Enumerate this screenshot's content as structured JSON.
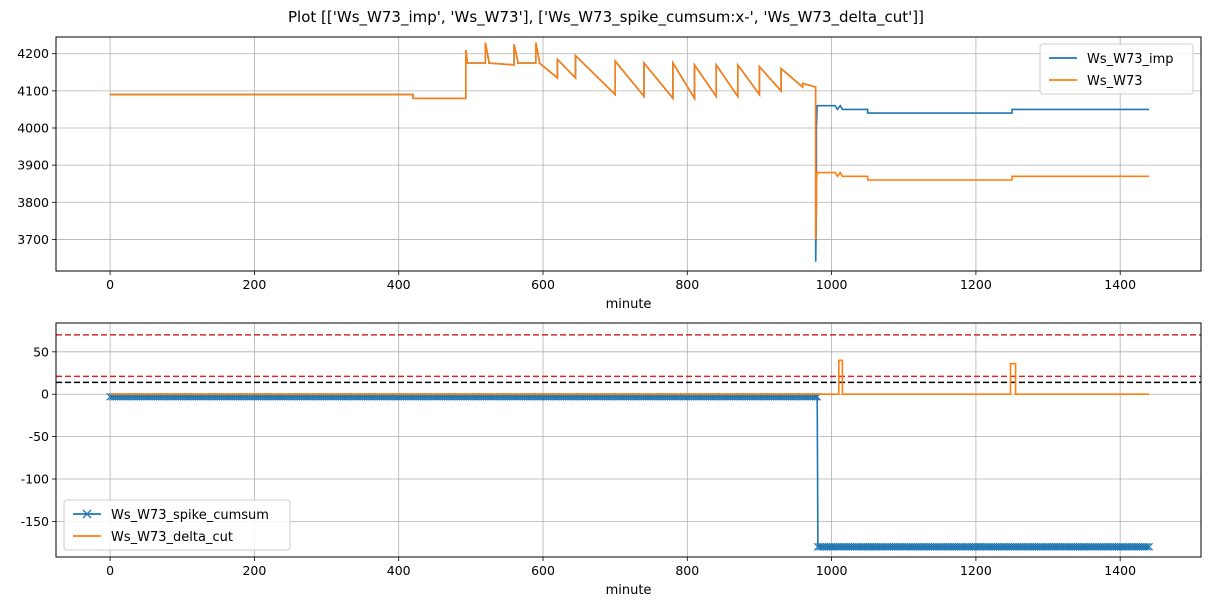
{
  "figure": {
    "title": "Plot [['Ws_W73_imp', 'Ws_W73'], ['Ws_W73_spike_cumsum:x-', 'Ws_W73_delta_cut']]"
  },
  "colors": {
    "blue": "#1f77b4",
    "orange": "#ff7f0e",
    "red": "#d62728",
    "black": "#000000",
    "grid": "#b0b0b0"
  },
  "chart_data": [
    {
      "type": "line",
      "xlabel": "minute",
      "ylabel": "",
      "xlim": [
        -75,
        1512
      ],
      "ylim": [
        3615,
        4245
      ],
      "xticks": [
        0,
        200,
        400,
        600,
        800,
        1000,
        1200,
        1400
      ],
      "yticks": [
        3700,
        3800,
        3900,
        4000,
        4100,
        4200
      ],
      "grid": true,
      "legend_position": "upper right",
      "series": [
        {
          "name": "Ws_W73_imp",
          "color": "#1f77b4",
          "x": [
            0,
            420,
            420,
            493,
            493,
            495,
            495,
            520,
            520,
            525,
            525,
            560,
            560,
            565,
            565,
            590,
            590,
            595,
            595,
            620,
            620,
            645,
            645,
            700,
            700,
            740,
            740,
            780,
            780,
            810,
            810,
            840,
            840,
            870,
            870,
            900,
            900,
            930,
            930,
            960,
            960,
            978,
            978,
            979,
            979,
            980,
            980,
            981,
            981,
            1005,
            1008,
            1012,
            1015,
            1050,
            1050,
            1250,
            1250,
            1440
          ],
          "y": [
            4090,
            4090,
            4080,
            4080,
            4210,
            4180,
            4175,
            4175,
            4230,
            4180,
            4175,
            4170,
            4225,
            4180,
            4175,
            4175,
            4230,
            4180,
            4175,
            4135,
            4185,
            4135,
            4195,
            4090,
            4180,
            4085,
            4175,
            4080,
            4175,
            4080,
            4170,
            4085,
            4170,
            4085,
            4170,
            4090,
            4165,
            4100,
            4160,
            4110,
            4120,
            4110,
            3640,
            3780,
            4000,
            4060,
            4060,
            4060,
            4060,
            4060,
            4050,
            4060,
            4050,
            4050,
            4040,
            4040,
            4050,
            4050
          ]
        },
        {
          "name": "Ws_W73",
          "color": "#ff7f0e",
          "x": [
            0,
            420,
            420,
            493,
            493,
            495,
            495,
            520,
            520,
            525,
            525,
            560,
            560,
            565,
            565,
            590,
            590,
            595,
            595,
            620,
            620,
            645,
            645,
            700,
            700,
            740,
            740,
            780,
            780,
            810,
            810,
            840,
            840,
            870,
            870,
            900,
            900,
            930,
            930,
            960,
            960,
            978,
            978,
            979,
            979,
            980,
            980,
            981,
            981,
            1005,
            1008,
            1012,
            1015,
            1050,
            1050,
            1250,
            1250,
            1440
          ],
          "y": [
            4090,
            4090,
            4080,
            4080,
            4210,
            4180,
            4175,
            4175,
            4230,
            4180,
            4175,
            4170,
            4225,
            4180,
            4175,
            4175,
            4230,
            4180,
            4175,
            4135,
            4185,
            4135,
            4195,
            4090,
            4180,
            4085,
            4175,
            4080,
            4175,
            4080,
            4170,
            4085,
            4170,
            4085,
            4170,
            4090,
            4165,
            4100,
            4160,
            4110,
            4120,
            4110,
            3700,
            3800,
            3860,
            3880,
            3880,
            3880,
            3880,
            3880,
            3870,
            3880,
            3870,
            3870,
            3860,
            3860,
            3870,
            3870
          ]
        }
      ]
    },
    {
      "type": "line",
      "xlabel": "minute",
      "ylabel": "",
      "xlim": [
        -75,
        1512
      ],
      "ylim": [
        -192,
        84
      ],
      "xticks": [
        0,
        200,
        400,
        600,
        800,
        1000,
        1200,
        1400
      ],
      "yticks": [
        -150,
        -100,
        -50,
        0,
        50
      ],
      "grid": true,
      "legend_position": "lower left",
      "hlines": [
        {
          "y": 70,
          "color": "#d62728",
          "style": "dashed"
        },
        {
          "y": 21,
          "color": "#d62728",
          "style": "dashed"
        },
        {
          "y": 14,
          "color": "#000000",
          "style": "dashed"
        }
      ],
      "series": [
        {
          "name": "Ws_W73_spike_cumsum",
          "color": "#1f77b4",
          "marker": "x",
          "x_start": 0,
          "x_end": 1440,
          "x_step": 3,
          "step_at": 980,
          "values_before": -3,
          "values_after": -180
        },
        {
          "name": "Ws_W73_delta_cut",
          "color": "#ff7f0e",
          "x": [
            0,
            1010,
            1010,
            1015,
            1015,
            1248,
            1248,
            1255,
            1255,
            1440
          ],
          "y": [
            0,
            0,
            40,
            40,
            0,
            0,
            36,
            36,
            0,
            0
          ]
        }
      ]
    }
  ]
}
